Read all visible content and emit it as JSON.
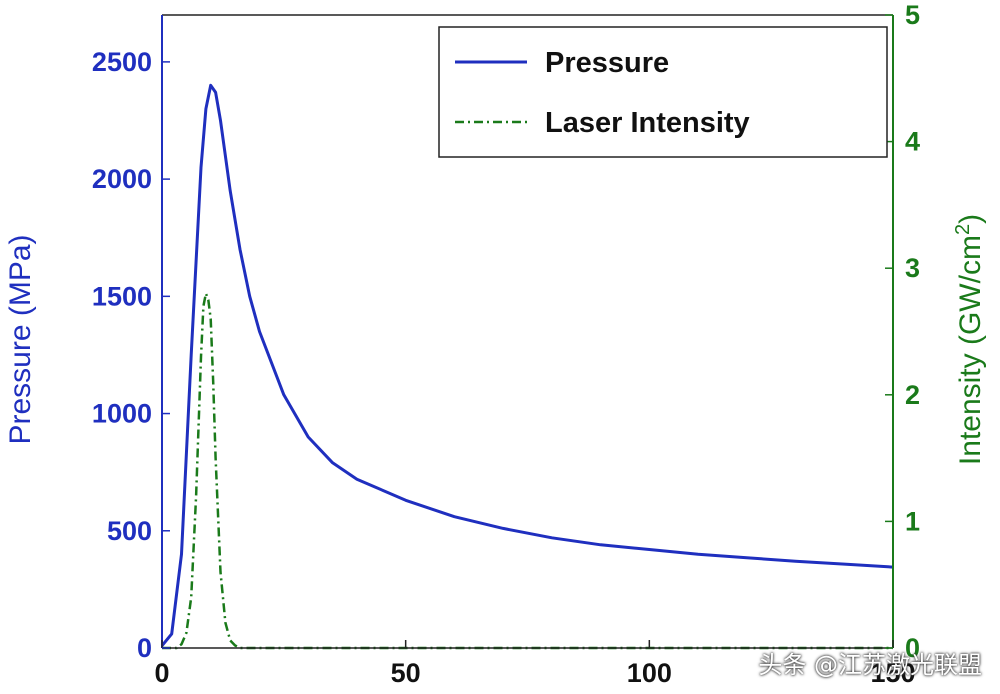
{
  "chart_data": {
    "type": "line",
    "title": "",
    "xlabel": "",
    "x_ticks": [
      0,
      50,
      100,
      150
    ],
    "xlim": [
      0,
      150
    ],
    "left_axis": {
      "label": "Pressure (MPa)",
      "ylim": [
        0,
        2700
      ],
      "ticks": [
        0,
        500,
        1000,
        1500,
        2000,
        2500
      ],
      "color": "#1f2fbf"
    },
    "right_axis": {
      "label_main": "Intensity (GW/cm",
      "label_sup": "2",
      "label_close": ")",
      "ylim": [
        0,
        5
      ],
      "ticks": [
        0,
        1,
        2,
        3,
        4,
        5
      ],
      "color": "#1a7a1a"
    },
    "series": [
      {
        "name": "Pressure",
        "axis": "left",
        "style": "solid",
        "color": "#1f2fbf",
        "x": [
          0,
          2,
          4,
          6,
          8,
          9,
          10,
          11,
          12,
          14,
          16,
          18,
          20,
          25,
          30,
          35,
          40,
          50,
          60,
          70,
          80,
          90,
          100,
          110,
          120,
          130,
          140,
          150
        ],
        "y": [
          10,
          60,
          400,
          1250,
          2050,
          2300,
          2400,
          2370,
          2250,
          1950,
          1700,
          1500,
          1350,
          1080,
          900,
          790,
          720,
          630,
          560,
          510,
          470,
          440,
          420,
          400,
          385,
          370,
          358,
          345
        ]
      },
      {
        "name": "Laser Intensity",
        "axis": "right",
        "style": "dashdot",
        "color": "#1a7a1a",
        "x": [
          0,
          3,
          4,
          5,
          6,
          7,
          8,
          8.5,
          9,
          9.5,
          10,
          10.5,
          11,
          12,
          13,
          14,
          15,
          16,
          20,
          150
        ],
        "y": [
          0,
          0,
          0.03,
          0.12,
          0.4,
          1.2,
          2.3,
          2.7,
          2.8,
          2.75,
          2.6,
          2.1,
          1.5,
          0.6,
          0.2,
          0.06,
          0.02,
          0,
          0,
          0
        ]
      }
    ],
    "legend": {
      "position": "top-right",
      "entries": [
        "Pressure",
        "Laser Intensity"
      ]
    }
  },
  "watermark": "头条 @江苏激光联盟"
}
